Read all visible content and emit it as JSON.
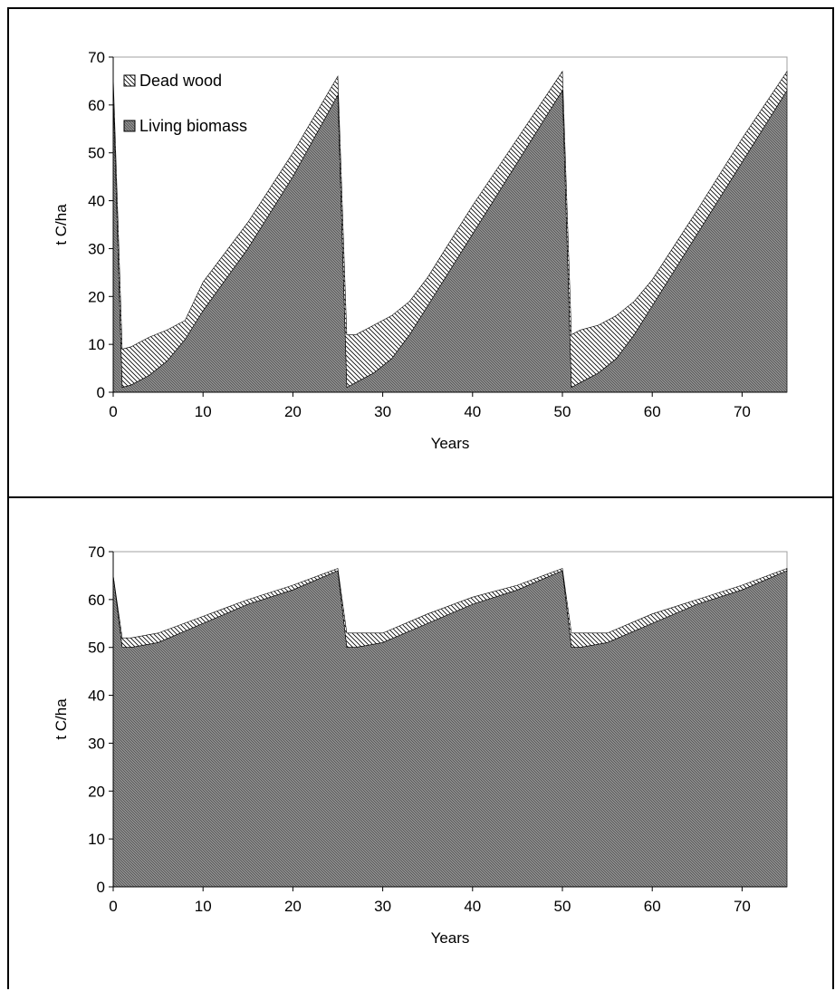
{
  "colors": {
    "living_fill": "#8a8a8a",
    "living_hatch": "#5a5a5a",
    "dead_fill": "#ffffff",
    "dead_hatch": "#000000",
    "axis": "#000000"
  },
  "chart_data": [
    {
      "type": "area",
      "stacked": true,
      "xlabel": "Years",
      "ylabel": "t C/ha",
      "xlim": [
        0,
        75
      ],
      "ylim": [
        0,
        70
      ],
      "xticks": [
        "0",
        "10",
        "20",
        "30",
        "40",
        "50",
        "60",
        "70"
      ],
      "yticks": [
        "0",
        "10",
        "20",
        "30",
        "40",
        "50",
        "60",
        "70"
      ],
      "legend": {
        "placement": "top-left",
        "entries": [
          "Dead wood",
          "Living biomass"
        ]
      },
      "x": [
        0,
        1,
        2,
        4,
        6,
        8,
        10,
        15,
        20,
        25,
        26,
        27,
        29,
        31,
        33,
        35,
        40,
        45,
        50,
        51,
        52,
        54,
        56,
        58,
        60,
        65,
        70,
        75
      ],
      "series": [
        {
          "name": "Living biomass",
          "values": [
            62,
            1,
            1.5,
            3.5,
            6.5,
            11,
            17,
            30,
            45,
            62,
            1,
            2,
            4,
            7,
            12,
            18,
            33,
            48,
            63,
            1,
            2,
            4,
            7,
            12,
            18,
            33,
            48,
            63
          ]
        },
        {
          "name": "Dead wood",
          "values": [
            4,
            8,
            8,
            8,
            6.5,
            4,
            6,
            5.5,
            5,
            4,
            11,
            10,
            10,
            9,
            7,
            6,
            6,
            5,
            4,
            11,
            11,
            10,
            9,
            7,
            5.5,
            5,
            5,
            4
          ]
        }
      ]
    },
    {
      "type": "area",
      "stacked": true,
      "xlabel": "Years",
      "ylabel": "t C/ha",
      "xlim": [
        0,
        75
      ],
      "ylim": [
        0,
        70
      ],
      "xticks": [
        "0",
        "10",
        "20",
        "30",
        "40",
        "50",
        "60",
        "70"
      ],
      "yticks": [
        "0",
        "10",
        "20",
        "30",
        "40",
        "50",
        "60",
        "70"
      ],
      "x": [
        0,
        1,
        2,
        5,
        10,
        15,
        20,
        25,
        26,
        27,
        30,
        35,
        40,
        45,
        50,
        51,
        52,
        55,
        60,
        65,
        70,
        75
      ],
      "series": [
        {
          "name": "Living biomass",
          "values": [
            65,
            50,
            50,
            51,
            55,
            59,
            62,
            66,
            50,
            50,
            51,
            55,
            59,
            62,
            66,
            50,
            50,
            51,
            55,
            59,
            62,
            66
          ]
        },
        {
          "name": "Dead wood",
          "values": [
            0,
            2,
            2,
            2,
            1.5,
            1,
            1,
            0.5,
            3,
            3,
            2,
            2,
            1.5,
            1,
            0.5,
            3,
            3,
            2,
            2,
            1,
            1,
            0.5
          ]
        }
      ]
    }
  ]
}
